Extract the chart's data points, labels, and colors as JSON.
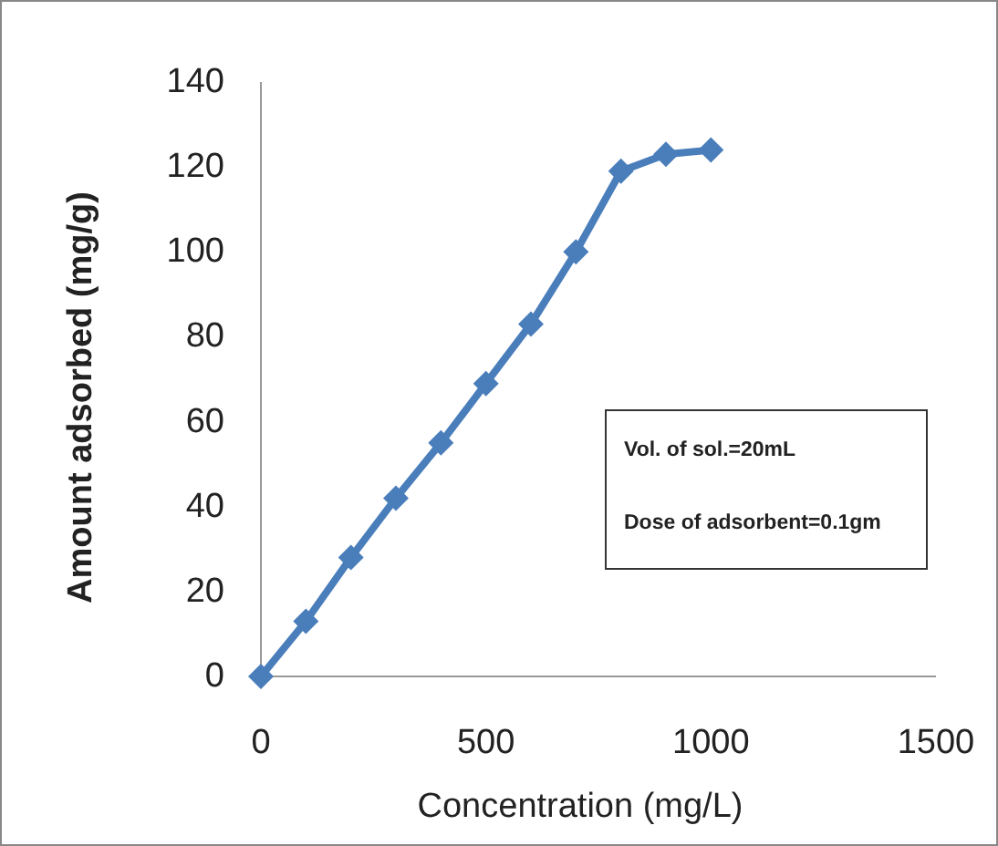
{
  "chart_data": {
    "type": "line",
    "xlabel": "Concentration (mg/L)",
    "ylabel": "Amount adsorbed (mg/g)",
    "x": [
      0,
      100,
      200,
      300,
      400,
      500,
      600,
      700,
      800,
      900,
      1000
    ],
    "series": [
      {
        "color": "#4a7ebb",
        "values": [
          0,
          13,
          28,
          42,
          55,
          69,
          83,
          100,
          119,
          123,
          124
        ]
      }
    ],
    "xlim": [
      0,
      1500
    ],
    "xticks": [
      0,
      500,
      1000,
      1500
    ],
    "ylim": [
      0,
      140
    ],
    "yticks": [
      0,
      20,
      40,
      60,
      80,
      100,
      120,
      140
    ],
    "marker": "diamond",
    "line_style": "solid",
    "grid": false,
    "annotations": [
      "Vol. of sol.=20mL",
      "Dose of adsorbent=0.1gm"
    ]
  }
}
